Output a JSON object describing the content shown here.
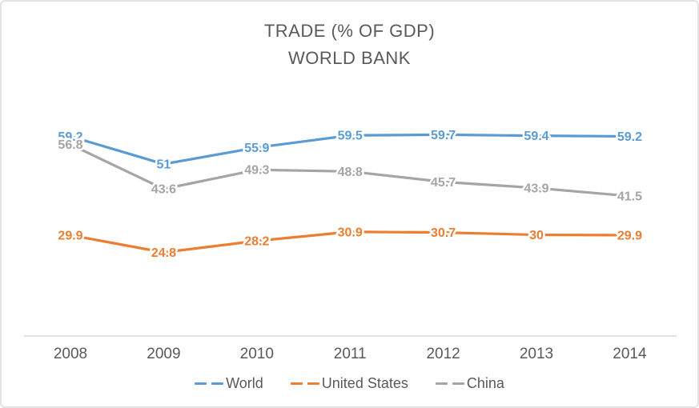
{
  "chart_data": {
    "type": "line",
    "title": "TRADE (% OF GDP)",
    "subtitle": "WORLD BANK",
    "x": [
      "2008",
      "2009",
      "2010",
      "2011",
      "2012",
      "2013",
      "2014"
    ],
    "series": [
      {
        "name": "World",
        "color": "#5B9BD5",
        "values": [
          59.2,
          51,
          55.9,
          59.5,
          59.7,
          59.4,
          59.2
        ]
      },
      {
        "name": "United States",
        "color": "#ED7D31",
        "values": [
          29.9,
          24.8,
          28.2,
          30.9,
          30.7,
          30,
          29.9
        ]
      },
      {
        "name": "China",
        "color": "#A5A5A5",
        "values": [
          56.8,
          43.6,
          49.3,
          48.8,
          45.7,
          43.9,
          41.5
        ]
      }
    ],
    "xlabel": "",
    "ylabel": "",
    "ylim": [
      0,
      70
    ],
    "grid": false,
    "data_labels": true,
    "legend_position": "bottom",
    "axis_color": "#D9D9D9",
    "text_color": "#595959"
  }
}
